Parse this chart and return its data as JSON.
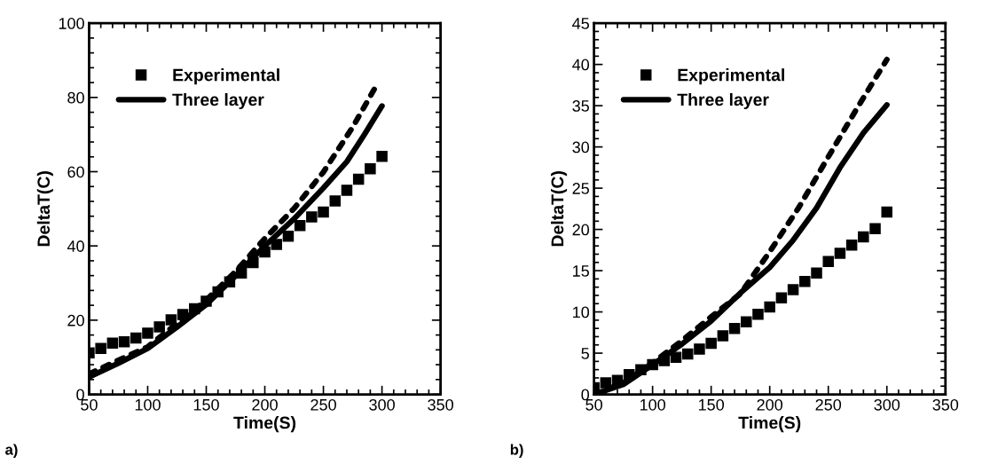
{
  "chart_data": [
    {
      "type": "line",
      "xlabel": "Time(S)",
      "ylabel": "DeltaT(C)",
      "xlim": [
        50,
        350
      ],
      "xticks": [
        50,
        100,
        150,
        200,
        250,
        300,
        350
      ],
      "ylim": [
        0,
        100
      ],
      "yticks": [
        0,
        20,
        40,
        60,
        80,
        100
      ],
      "grid": false,
      "legend": "top left",
      "annotations": [
        "a)"
      ],
      "series": [
        {
          "name": "Experimental",
          "type": "scatter",
          "marker": "square",
          "color": "#000000",
          "x": [
            50,
            60,
            70,
            80,
            90,
            100,
            110,
            120,
            130,
            140,
            150,
            160,
            170,
            180,
            190,
            200,
            210,
            220,
            230,
            240,
            250,
            260,
            270,
            280,
            290,
            300
          ],
          "values": [
            11.2,
            12.4,
            13.8,
            14.2,
            15.2,
            16.5,
            18.2,
            20.1,
            21.5,
            23.1,
            25.1,
            27.6,
            30.3,
            32.7,
            35.5,
            38.4,
            40.4,
            42.6,
            45.5,
            47.8,
            49.1,
            52.1,
            55.0,
            58.0,
            60.8,
            64.1
          ]
        },
        {
          "name": "Three layer",
          "line_style": "solid",
          "color": "#000000",
          "x": [
            50,
            75,
            100,
            125,
            150,
            175,
            200,
            225,
            250,
            270,
            285,
            300
          ],
          "values": [
            4.7,
            8.4,
            12.4,
            18.1,
            24.2,
            31.9,
            40.0,
            47.3,
            55.6,
            62.7,
            70,
            77.7
          ]
        },
        {
          "line_style": "dashed",
          "color": "#000000",
          "x": [
            50,
            75,
            100,
            150,
            175,
            200,
            225,
            250,
            275,
            295
          ],
          "values": [
            5.5,
            9.2,
            12.8,
            25.4,
            33.1,
            42,
            50.1,
            59.9,
            72,
            83.1
          ]
        }
      ]
    },
    {
      "type": "line",
      "xlabel": "Time(S)",
      "ylabel": "DeltaT(C)",
      "xlim": [
        50,
        350
      ],
      "xticks": [
        50,
        100,
        150,
        200,
        250,
        300,
        350
      ],
      "ylim": [
        0,
        45
      ],
      "yticks": [
        0,
        5,
        10,
        15,
        20,
        25,
        30,
        35,
        40,
        45
      ],
      "grid": false,
      "legend": "top left",
      "annotations": [
        "b)"
      ],
      "series": [
        {
          "name": "Experimental",
          "type": "scatter",
          "marker": "square",
          "color": "#000000",
          "x": [
            50,
            60,
            70,
            80,
            90,
            100,
            110,
            120,
            130,
            140,
            150,
            160,
            170,
            180,
            190,
            200,
            210,
            220,
            230,
            240,
            250,
            260,
            270,
            280,
            290,
            300
          ],
          "values": [
            0.8,
            1.4,
            1.7,
            2.4,
            3.0,
            3.6,
            4.1,
            4.5,
            4.9,
            5.5,
            6.2,
            7.1,
            8.0,
            8.8,
            9.7,
            10.6,
            11.7,
            12.7,
            13.7,
            14.7,
            16.1,
            17.1,
            18.1,
            19.1,
            20.1,
            22.1
          ]
        },
        {
          "name": "Three layer",
          "line_style": "solid",
          "color": "#000000",
          "x": [
            50,
            75,
            100,
            125,
            150,
            175,
            200,
            220,
            240,
            260,
            280,
            300
          ],
          "values": [
            0,
            1.2,
            3.6,
            6.1,
            8.9,
            12.3,
            15.4,
            18.7,
            22.6,
            27.5,
            31.7,
            35.1
          ]
        },
        {
          "line_style": "dashed",
          "color": "#000000",
          "x": [
            50,
            75,
            100,
            125,
            150,
            175,
            200,
            225,
            250,
            275,
            300
          ],
          "values": [
            0,
            1.4,
            3.8,
            6.5,
            9.4,
            12.2,
            17.3,
            22.7,
            28.8,
            34.8,
            40.6
          ]
        }
      ]
    }
  ]
}
